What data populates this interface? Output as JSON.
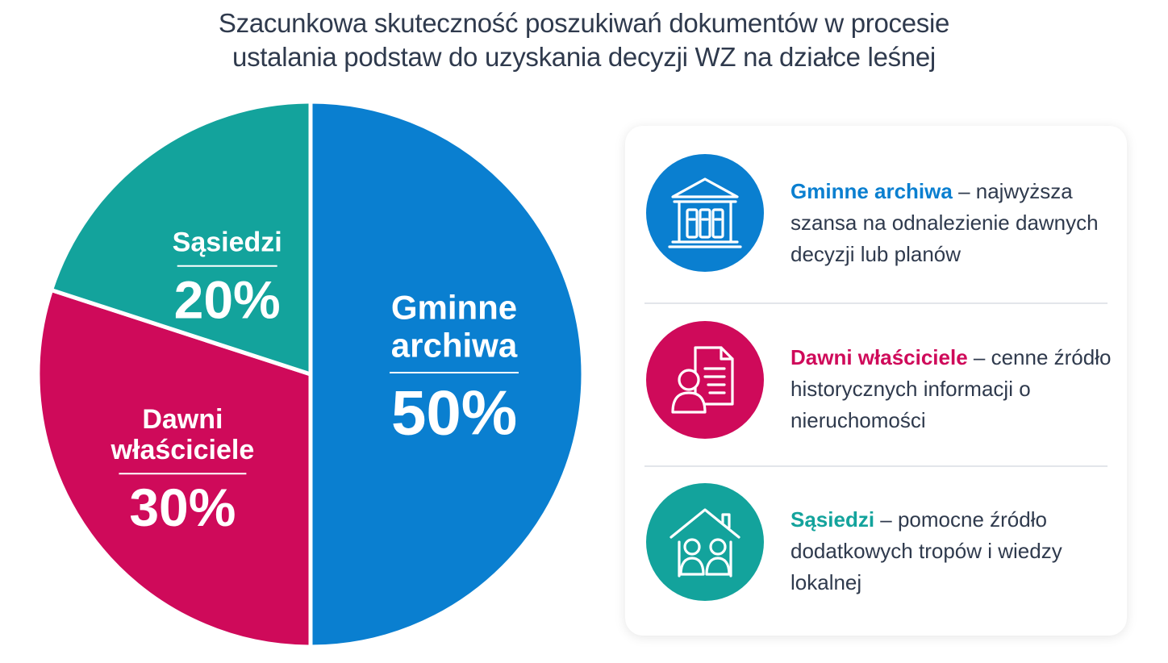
{
  "title_lines": [
    "Szacunkowa skuteczność poszukiwań dokumentów w procesie",
    "ustalania podstaw do uzyskania decyzji WZ na działce leśnej"
  ],
  "colors": {
    "blue": "#0a7fd0",
    "magenta": "#cf0a5a",
    "teal": "#13a39c"
  },
  "chart_data": {
    "type": "pie",
    "title": "Szacunkowa skuteczność poszukiwań dokumentów w procesie ustalania podstaw do uzyskania decyzji WZ na działce leśnej",
    "unit": "%",
    "slices": [
      {
        "label_lines": [
          "Gminne",
          "archiwa"
        ],
        "value": 50,
        "value_label": "50%",
        "color": "#0a7fd0"
      },
      {
        "label_lines": [
          "Dawni",
          "właściciele"
        ],
        "value": 30,
        "value_label": "30%",
        "color": "#cf0a5a"
      },
      {
        "label_lines": [
          "Sąsiedzi"
        ],
        "value": 20,
        "value_label": "20%",
        "color": "#13a39c"
      }
    ]
  },
  "legend": [
    {
      "icon": "archive-building-icon",
      "color": "#0a7fd0",
      "lead": "Gminne archiwa",
      "rest": " – najwyższa szansa na odnalezienie dawnych decyzji lub planów"
    },
    {
      "icon": "owner-document-icon",
      "color": "#cf0a5a",
      "lead": "Dawni właściciele",
      "rest": " – cenne źródło historycznych informacji o nieruchomości"
    },
    {
      "icon": "neighbors-house-icon",
      "color": "#13a39c",
      "lead": "Sąsiedzi",
      "rest": " – pomocne źródło dodatkowych tropów i wiedzy lokalnej"
    }
  ]
}
